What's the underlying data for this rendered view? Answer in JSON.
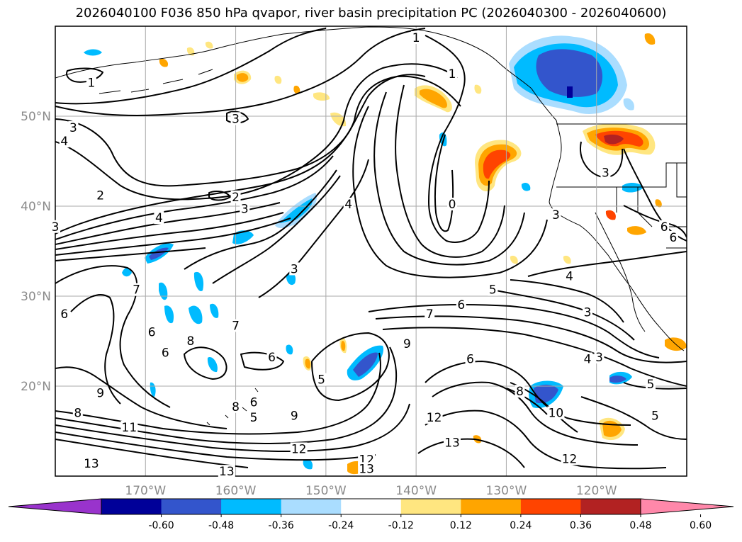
{
  "title": "2026040100 F036 850 hPa qvapor, river basin precipitation PC (2026040300 - 2026040600)",
  "map": {
    "projection": "cylindrical",
    "lon_range": [
      -180,
      -110
    ],
    "lat_range": [
      10,
      60
    ],
    "lon_ticks": [
      {
        "value": -170,
        "label": "170°W"
      },
      {
        "value": -160,
        "label": "160°W"
      },
      {
        "value": -150,
        "label": "150°W"
      },
      {
        "value": -140,
        "label": "140°W"
      },
      {
        "value": -130,
        "label": "130°W"
      },
      {
        "value": -120,
        "label": "120°W"
      }
    ],
    "lat_ticks": [
      {
        "value": 50,
        "label": "50°N"
      },
      {
        "value": 40,
        "label": "40°N"
      },
      {
        "value": 30,
        "label": "30°N"
      },
      {
        "value": 20,
        "label": "20°N"
      }
    ],
    "grid": true,
    "coastlines": true
  },
  "contour_labels": [
    {
      "text": "1",
      "lon": -176,
      "lat": 53.5
    },
    {
      "text": "1",
      "lon": -140,
      "lat": 58.5
    },
    {
      "text": "1",
      "lon": -136,
      "lat": 54.5
    },
    {
      "text": "3",
      "lon": -178,
      "lat": 48.5
    },
    {
      "text": "3",
      "lon": -160,
      "lat": 49.5
    },
    {
      "text": "4",
      "lon": -179,
      "lat": 47
    },
    {
      "text": "2",
      "lon": -175,
      "lat": 41
    },
    {
      "text": "2",
      "lon": -160,
      "lat": 40.8
    },
    {
      "text": "3",
      "lon": -159,
      "lat": 39.5
    },
    {
      "text": "4",
      "lon": -168.5,
      "lat": 38.5
    },
    {
      "text": "4",
      "lon": -147.5,
      "lat": 40
    },
    {
      "text": "0",
      "lon": -136,
      "lat": 40
    },
    {
      "text": "3",
      "lon": -153.5,
      "lat": 32.8
    },
    {
      "text": "3",
      "lon": -124.5,
      "lat": 38.8
    },
    {
      "text": "4",
      "lon": -123,
      "lat": 32
    },
    {
      "text": "5",
      "lon": -131.5,
      "lat": 30.5
    },
    {
      "text": "6",
      "lon": -135,
      "lat": 28.8
    },
    {
      "text": "7",
      "lon": -138.5,
      "lat": 27.8
    },
    {
      "text": "3",
      "lon": -121,
      "lat": 28
    },
    {
      "text": "6",
      "lon": -179,
      "lat": 27.8
    },
    {
      "text": "6",
      "lon": -169.3,
      "lat": 25.8
    },
    {
      "text": "7",
      "lon": -171,
      "lat": 30.5
    },
    {
      "text": "7",
      "lon": -160,
      "lat": 26.5
    },
    {
      "text": "6",
      "lon": -167.8,
      "lat": 23.5
    },
    {
      "text": "8",
      "lon": -165,
      "lat": 24.8
    },
    {
      "text": "6",
      "lon": -156,
      "lat": 23
    },
    {
      "text": "5",
      "lon": -150.5,
      "lat": 20.5
    },
    {
      "text": "9",
      "lon": -141,
      "lat": 24.5
    },
    {
      "text": "6",
      "lon": -134,
      "lat": 22.8
    },
    {
      "text": "4",
      "lon": -121,
      "lat": 22.8
    },
    {
      "text": "3",
      "lon": -119.7,
      "lat": 23
    },
    {
      "text": "5",
      "lon": -114,
      "lat": 20
    },
    {
      "text": "9",
      "lon": -175,
      "lat": 19
    },
    {
      "text": "8",
      "lon": -177.5,
      "lat": 16.8
    },
    {
      "text": "8",
      "lon": -160,
      "lat": 17.5
    },
    {
      "text": "6",
      "lon": -158,
      "lat": 18
    },
    {
      "text": "5",
      "lon": -158,
      "lat": 16.3
    },
    {
      "text": "9",
      "lon": -153.5,
      "lat": 16.5
    },
    {
      "text": "8",
      "lon": -128.5,
      "lat": 19.2
    },
    {
      "text": "10",
      "lon": -124.5,
      "lat": 16.8
    },
    {
      "text": "11",
      "lon": -171.8,
      "lat": 15.2
    },
    {
      "text": "12",
      "lon": -153,
      "lat": 12.8
    },
    {
      "text": "12",
      "lon": -138,
      "lat": 16.3
    },
    {
      "text": "13",
      "lon": -136,
      "lat": 13.5
    },
    {
      "text": "12",
      "lon": -123,
      "lat": 11.7
    },
    {
      "text": "12",
      "lon": -145.5,
      "lat": 11.6
    },
    {
      "text": "13",
      "lon": -145.5,
      "lat": 10.6
    },
    {
      "text": "13",
      "lon": -176,
      "lat": 11.2
    },
    {
      "text": "13",
      "lon": -161,
      "lat": 10.3
    },
    {
      "text": "5",
      "lon": -113.5,
      "lat": 16.5
    },
    {
      "text": "6",
      "lon": -112.5,
      "lat": 37.5
    },
    {
      "text": "6",
      "lon": -111.5,
      "lat": 36.3
    },
    {
      "text": "3",
      "lon": -180,
      "lat": 37.5
    },
    {
      "text": "3",
      "lon": -119,
      "lat": 43.5
    }
  ],
  "colorbar": {
    "levels": [
      "-0.60",
      "-0.48",
      "-0.36",
      "-0.24",
      "-0.12",
      "0.12",
      "0.24",
      "0.36",
      "0.48",
      "0.60"
    ],
    "colors": [
      "#9933cc",
      "#000099",
      "#3355cc",
      "#00bbff",
      "#aaddff",
      "#ffffff",
      "#ffe680",
      "#ffa500",
      "#ff4400",
      "#b22222",
      "#ff88aa"
    ]
  }
}
